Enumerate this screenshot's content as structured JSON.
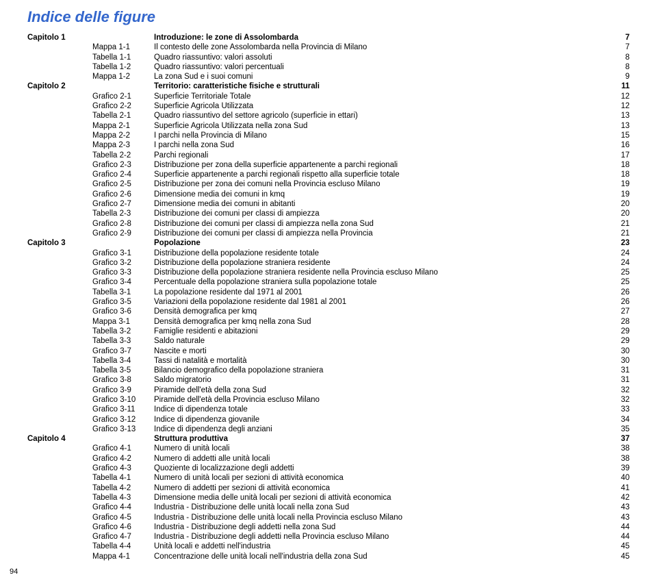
{
  "title": "Indice delle figure",
  "pageNumber": "94",
  "colors": {
    "title": "#3366cc",
    "text": "#000000",
    "background": "#ffffff"
  },
  "fonts": {
    "title_size": 22,
    "body_size": 11.5,
    "line_height": 14.3
  },
  "rows": [
    {
      "chapter": "Capitolo 1",
      "ref": "",
      "desc": "Introduzione: le zone di Assolombarda",
      "page": "7",
      "bold": true
    },
    {
      "chapter": "",
      "ref": "Mappa 1-1",
      "desc": "Il contesto delle zone Assolombarda nella Provincia di Milano",
      "page": "7"
    },
    {
      "chapter": "",
      "ref": "Tabella 1-1",
      "desc": "Quadro riassuntivo: valori assoluti",
      "page": "8"
    },
    {
      "chapter": "",
      "ref": "Tabella 1-2",
      "desc": "Quadro riassuntivo: valori percentuali",
      "page": "8"
    },
    {
      "chapter": "",
      "ref": "Mappa 1-2",
      "desc": "La zona Sud e i suoi comuni",
      "page": "9"
    },
    {
      "chapter": "Capitolo 2",
      "ref": "",
      "desc": "Territorio: caratteristiche fisiche e strutturali",
      "page": "11",
      "bold": true
    },
    {
      "chapter": "",
      "ref": "Grafico 2-1",
      "desc": "Superficie Territoriale Totale",
      "page": "12"
    },
    {
      "chapter": "",
      "ref": "Grafico 2-2",
      "desc": "Superficie Agricola Utilizzata",
      "page": "12"
    },
    {
      "chapter": "",
      "ref": "Tabella 2-1",
      "desc": "Quadro riassuntivo del settore agricolo (superficie in ettari)",
      "page": "13"
    },
    {
      "chapter": "",
      "ref": "Mappa 2-1",
      "desc": "Superficie Agricola Utilizzata nella zona Sud",
      "page": "13"
    },
    {
      "chapter": "",
      "ref": "Mappa 2-2",
      "desc": "I parchi nella Provincia di Milano",
      "page": "15"
    },
    {
      "chapter": "",
      "ref": "Mappa 2-3",
      "desc": "I parchi nella zona Sud",
      "page": "16"
    },
    {
      "chapter": "",
      "ref": "Tabella 2-2",
      "desc": "Parchi regionali",
      "page": "17"
    },
    {
      "chapter": "",
      "ref": "Grafico 2-3",
      "desc": "Distribuzione per zona della superficie appartenente a parchi regionali",
      "page": "18"
    },
    {
      "chapter": "",
      "ref": "Grafico 2-4",
      "desc": "Superficie appartenente a parchi regionali rispetto alla superficie totale",
      "page": "18"
    },
    {
      "chapter": "",
      "ref": "Grafico 2-5",
      "desc": "Distribuzione per zona dei comuni nella Provincia escluso Milano",
      "page": "19"
    },
    {
      "chapter": "",
      "ref": "Grafico 2-6",
      "desc": "Dimensione media dei comuni in kmq",
      "page": "19"
    },
    {
      "chapter": "",
      "ref": "Grafico 2-7",
      "desc": "Dimensione media dei comuni in abitanti",
      "page": "20"
    },
    {
      "chapter": "",
      "ref": "Tabella 2-3",
      "desc": "Distribuzione dei comuni per classi di ampiezza",
      "page": "20"
    },
    {
      "chapter": "",
      "ref": "Grafico 2-8",
      "desc": "Distribuzione dei comuni per classi di ampiezza nella zona Sud",
      "page": "21"
    },
    {
      "chapter": "",
      "ref": "Grafico 2-9",
      "desc": "Distribuzione dei comuni per classi di ampiezza nella Provincia",
      "page": "21"
    },
    {
      "chapter": "Capitolo 3",
      "ref": "",
      "desc": "Popolazione",
      "page": "23",
      "bold": true
    },
    {
      "chapter": "",
      "ref": "Grafico 3-1",
      "desc": "Distribuzione della popolazione residente totale",
      "page": "24"
    },
    {
      "chapter": "",
      "ref": "Grafico 3-2",
      "desc": "Distribuzione della popolazione straniera residente",
      "page": "24"
    },
    {
      "chapter": "",
      "ref": "Grafico 3-3",
      "desc": "Distribuzione della popolazione straniera residente nella Provincia escluso Milano",
      "page": "25"
    },
    {
      "chapter": "",
      "ref": "Grafico 3-4",
      "desc": "Percentuale della popolazione straniera sulla popolazione totale",
      "page": "25"
    },
    {
      "chapter": "",
      "ref": "Tabella 3-1",
      "desc": "La popolazione residente dal 1971 al 2001",
      "page": "26"
    },
    {
      "chapter": "",
      "ref": "Grafico 3-5",
      "desc": "Variazioni della popolazione residente dal 1981 al 2001",
      "page": "26"
    },
    {
      "chapter": "",
      "ref": "Grafico 3-6",
      "desc": "Densità demografica per kmq",
      "page": "27"
    },
    {
      "chapter": "",
      "ref": "Mappa 3-1",
      "desc": "Densità demografica per kmq nella zona Sud",
      "page": "28"
    },
    {
      "chapter": "",
      "ref": "Tabella 3-2",
      "desc": "Famiglie residenti e abitazioni",
      "page": "29"
    },
    {
      "chapter": "",
      "ref": "Tabella 3-3",
      "desc": "Saldo naturale",
      "page": "29"
    },
    {
      "chapter": "",
      "ref": "Grafico 3-7",
      "desc": "Nascite e morti",
      "page": "30"
    },
    {
      "chapter": "",
      "ref": "Tabella 3-4",
      "desc": "Tassi di natalità e mortalità",
      "page": "30"
    },
    {
      "chapter": "",
      "ref": "Tabella 3-5",
      "desc": "Bilancio demografico della popolazione straniera",
      "page": "31"
    },
    {
      "chapter": "",
      "ref": "Grafico 3-8",
      "desc": "Saldo migratorio",
      "page": "31"
    },
    {
      "chapter": "",
      "ref": "Grafico 3-9",
      "desc": "Piramide dell'età della zona Sud",
      "page": "32"
    },
    {
      "chapter": "",
      "ref": "Grafico 3-10",
      "desc": "Piramide dell'età della Provincia escluso Milano",
      "page": "32"
    },
    {
      "chapter": "",
      "ref": "Grafico 3-11",
      "desc": "Indice di dipendenza totale",
      "page": "33"
    },
    {
      "chapter": "",
      "ref": "Grafico 3-12",
      "desc": "Indice di dipendenza giovanile",
      "page": "34"
    },
    {
      "chapter": "",
      "ref": "Grafico 3-13",
      "desc": "Indice di dipendenza degli anziani",
      "page": "35"
    },
    {
      "chapter": "Capitolo 4",
      "ref": "",
      "desc": "Struttura produttiva",
      "page": "37",
      "bold": true
    },
    {
      "chapter": "",
      "ref": "Grafico 4-1",
      "desc": "Numero di unità locali",
      "page": "38"
    },
    {
      "chapter": "",
      "ref": "Grafico 4-2",
      "desc": "Numero di addetti alle unità locali",
      "page": "38"
    },
    {
      "chapter": "",
      "ref": "Grafico 4-3",
      "desc": "Quoziente di localizzazione degli addetti",
      "page": "39"
    },
    {
      "chapter": "",
      "ref": "Tabella 4-1",
      "desc": "Numero di unità locali per sezioni di attività economica",
      "page": "40"
    },
    {
      "chapter": "",
      "ref": "Tabella 4-2",
      "desc": "Numero di addetti per sezioni di attività economica",
      "page": "41"
    },
    {
      "chapter": "",
      "ref": "Tabella 4-3",
      "desc": "Dimensione media delle unità locali per sezioni di attività economica",
      "page": "42"
    },
    {
      "chapter": "",
      "ref": "Grafico 4-4",
      "desc": "Industria - Distribuzione delle unità locali nella zona Sud",
      "page": "43"
    },
    {
      "chapter": "",
      "ref": "Grafico 4-5",
      "desc": "Industria - Distribuzione delle unità locali nella Provincia escluso Milano",
      "page": "43"
    },
    {
      "chapter": "",
      "ref": "Grafico 4-6",
      "desc": "Industria - Distribuzione degli addetti nella zona Sud",
      "page": "44"
    },
    {
      "chapter": "",
      "ref": "Grafico 4-7",
      "desc": "Industria - Distribuzione degli addetti nella Provincia escluso Milano",
      "page": "44"
    },
    {
      "chapter": "",
      "ref": "Tabella 4-4",
      "desc": "Unità locali e addetti nell'industria",
      "page": "45"
    },
    {
      "chapter": "",
      "ref": "Mappa 4-1",
      "desc": "Concentrazione delle unità locali nell'industria della zona Sud",
      "page": "45"
    }
  ]
}
